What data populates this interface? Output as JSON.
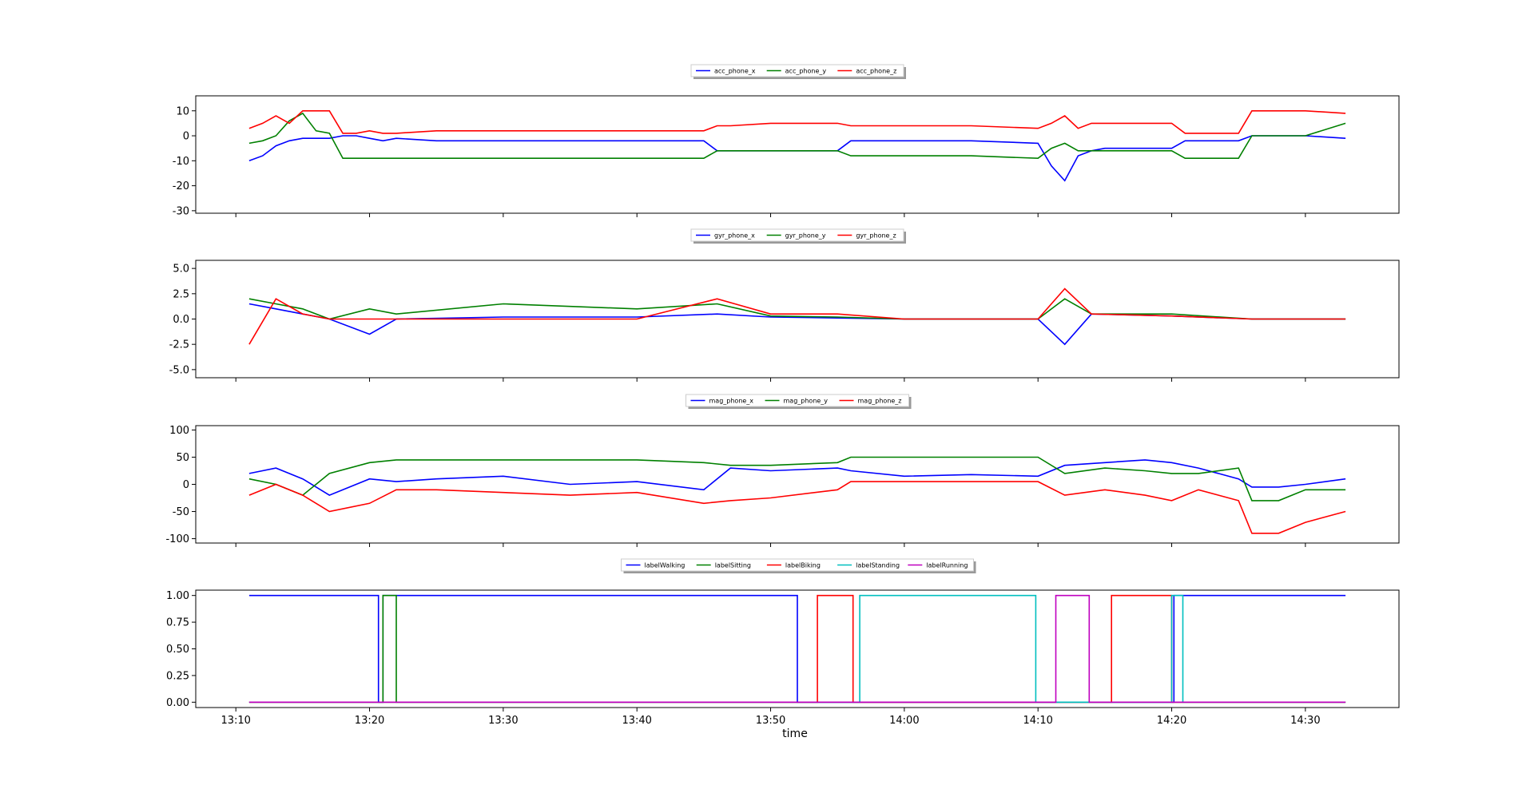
{
  "figure": {
    "xlabel": "time"
  },
  "chart_data": [
    {
      "type": "line",
      "title": "",
      "xlabel": "",
      "ylabel": "",
      "xlim": [
        "13:07",
        "14:37"
      ],
      "ylim": [
        -31,
        16
      ],
      "yticks": [
        -30,
        -20,
        -10,
        0,
        10
      ],
      "grid": false,
      "legend": "top-center",
      "series": [
        {
          "name": "acc_phone_x",
          "color": "#0000ff",
          "x": [
            "13:11",
            "13:12",
            "13:13",
            "13:14",
            "13:15",
            "13:16",
            "13:17",
            "13:18",
            "13:19",
            "13:20",
            "13:21",
            "13:22",
            "13:25",
            "13:30",
            "13:35",
            "13:40",
            "13:45",
            "13:46",
            "13:47",
            "13:50",
            "13:55",
            "13:56",
            "14:00",
            "14:05",
            "14:10",
            "14:11",
            "14:12",
            "14:13",
            "14:14",
            "14:15",
            "14:20",
            "14:21",
            "14:25",
            "14:26",
            "14:30",
            "14:33"
          ],
          "y": [
            -10,
            -8,
            -4,
            -2,
            -1,
            -1,
            -1,
            0,
            0,
            -1,
            -2,
            -1,
            -2,
            -2,
            -2,
            -2,
            -2,
            -6,
            -6,
            -6,
            -6,
            -2,
            -2,
            -2,
            -3,
            -12,
            -18,
            -8,
            -6,
            -5,
            -5,
            -2,
            -2,
            0,
            0,
            -1
          ]
        },
        {
          "name": "acc_phone_y",
          "color": "#008000",
          "x": [
            "13:11",
            "13:12",
            "13:13",
            "13:14",
            "13:15",
            "13:16",
            "13:17",
            "13:18",
            "13:19",
            "13:20",
            "13:21",
            "13:22",
            "13:25",
            "13:30",
            "13:35",
            "13:40",
            "13:45",
            "13:46",
            "13:47",
            "13:50",
            "13:55",
            "13:56",
            "14:00",
            "14:05",
            "14:10",
            "14:11",
            "14:12",
            "14:13",
            "14:14",
            "14:15",
            "14:20",
            "14:21",
            "14:25",
            "14:26",
            "14:30",
            "14:33"
          ],
          "y": [
            -3,
            -2,
            0,
            6,
            9,
            2,
            1,
            -9,
            -9,
            -9,
            -9,
            -9,
            -9,
            -9,
            -9,
            -9,
            -9,
            -6,
            -6,
            -6,
            -6,
            -8,
            -8,
            -8,
            -9,
            -5,
            -3,
            -6,
            -6,
            -6,
            -6,
            -9,
            -9,
            0,
            0,
            5
          ]
        },
        {
          "name": "acc_phone_z",
          "color": "#ff0000",
          "x": [
            "13:11",
            "13:12",
            "13:13",
            "13:14",
            "13:15",
            "13:16",
            "13:17",
            "13:18",
            "13:19",
            "13:20",
            "13:21",
            "13:22",
            "13:25",
            "13:30",
            "13:35",
            "13:40",
            "13:45",
            "13:46",
            "13:47",
            "13:50",
            "13:55",
            "13:56",
            "14:00",
            "14:05",
            "14:10",
            "14:11",
            "14:12",
            "14:13",
            "14:14",
            "14:15",
            "14:20",
            "14:21",
            "14:25",
            "14:26",
            "14:30",
            "14:33"
          ],
          "y": [
            3,
            5,
            8,
            5,
            10,
            10,
            10,
            1,
            1,
            2,
            1,
            1,
            2,
            2,
            2,
            2,
            2,
            4,
            4,
            5,
            5,
            4,
            4,
            4,
            3,
            5,
            8,
            3,
            5,
            5,
            5,
            1,
            1,
            10,
            10,
            9
          ]
        }
      ]
    },
    {
      "type": "line",
      "title": "",
      "xlabel": "",
      "ylabel": "",
      "xlim": [
        "13:07",
        "14:37"
      ],
      "ylim": [
        -5.8,
        5.8
      ],
      "yticks": [
        -5.0,
        -2.5,
        0.0,
        2.5,
        5.0
      ],
      "grid": false,
      "legend": "top-center",
      "series": [
        {
          "name": "gyr_phone_x",
          "color": "#0000ff",
          "x": [
            "13:11",
            "13:13",
            "13:15",
            "13:17",
            "13:20",
            "13:22",
            "13:30",
            "13:40",
            "13:46",
            "13:50",
            "13:55",
            "14:00",
            "14:10",
            "14:12",
            "14:14",
            "14:20",
            "14:26",
            "14:33"
          ],
          "y": [
            1.5,
            1.0,
            0.5,
            0.0,
            -1.5,
            0.0,
            0.2,
            0.2,
            0.5,
            0.2,
            0.1,
            0.0,
            0.0,
            -2.5,
            0.5,
            0.3,
            0.0,
            0.0
          ]
        },
        {
          "name": "gyr_phone_y",
          "color": "#008000",
          "x": [
            "13:11",
            "13:13",
            "13:15",
            "13:17",
            "13:20",
            "13:22",
            "13:30",
            "13:40",
            "13:46",
            "13:50",
            "13:55",
            "14:00",
            "14:10",
            "14:12",
            "14:14",
            "14:20",
            "14:26",
            "14:33"
          ],
          "y": [
            2.0,
            1.5,
            1.0,
            0.0,
            1.0,
            0.5,
            1.5,
            1.0,
            1.5,
            0.3,
            0.2,
            0.0,
            0.0,
            2.0,
            0.5,
            0.5,
            0.0,
            0.0
          ]
        },
        {
          "name": "gyr_phone_z",
          "color": "#ff0000",
          "x": [
            "13:11",
            "13:13",
            "13:15",
            "13:17",
            "13:20",
            "13:22",
            "13:30",
            "13:40",
            "13:46",
            "13:50",
            "13:55",
            "14:00",
            "14:10",
            "14:12",
            "14:14",
            "14:20",
            "14:26",
            "14:33"
          ],
          "y": [
            -2.5,
            2.0,
            0.5,
            0.0,
            0.0,
            0.0,
            0.0,
            0.0,
            2.0,
            0.5,
            0.5,
            0.0,
            0.0,
            3.0,
            0.5,
            0.3,
            0.0,
            0.0
          ]
        }
      ]
    },
    {
      "type": "line",
      "title": "",
      "xlabel": "",
      "ylabel": "",
      "xlim": [
        "13:07",
        "14:37"
      ],
      "ylim": [
        -108,
        108
      ],
      "yticks": [
        -100,
        -50,
        0,
        50,
        100
      ],
      "grid": false,
      "legend": "top-center",
      "series": [
        {
          "name": "mag_phone_x",
          "color": "#0000ff",
          "x": [
            "13:11",
            "13:13",
            "13:15",
            "13:17",
            "13:20",
            "13:22",
            "13:25",
            "13:30",
            "13:35",
            "13:40",
            "13:45",
            "13:47",
            "13:50",
            "13:55",
            "13:56",
            "14:00",
            "14:05",
            "14:10",
            "14:12",
            "14:15",
            "14:18",
            "14:20",
            "14:22",
            "14:25",
            "14:26",
            "14:28",
            "14:30",
            "14:33"
          ],
          "y": [
            20,
            30,
            10,
            -20,
            10,
            5,
            10,
            15,
            0,
            5,
            -10,
            30,
            25,
            30,
            25,
            15,
            18,
            15,
            35,
            40,
            45,
            40,
            30,
            10,
            -5,
            -5,
            0,
            10
          ]
        },
        {
          "name": "mag_phone_y",
          "color": "#008000",
          "x": [
            "13:11",
            "13:13",
            "13:15",
            "13:17",
            "13:20",
            "13:22",
            "13:25",
            "13:30",
            "13:35",
            "13:40",
            "13:45",
            "13:47",
            "13:50",
            "13:55",
            "13:56",
            "14:00",
            "14:05",
            "14:10",
            "14:12",
            "14:15",
            "14:18",
            "14:20",
            "14:22",
            "14:25",
            "14:26",
            "14:28",
            "14:30",
            "14:33"
          ],
          "y": [
            10,
            0,
            -20,
            20,
            40,
            45,
            45,
            45,
            45,
            45,
            40,
            35,
            35,
            40,
            50,
            50,
            50,
            50,
            20,
            30,
            25,
            20,
            20,
            30,
            -30,
            -30,
            -10,
            -10
          ]
        },
        {
          "name": "mag_phone_z",
          "color": "#ff0000",
          "x": [
            "13:11",
            "13:13",
            "13:15",
            "13:17",
            "13:20",
            "13:22",
            "13:25",
            "13:30",
            "13:35",
            "13:40",
            "13:45",
            "13:47",
            "13:50",
            "13:55",
            "13:56",
            "14:00",
            "14:05",
            "14:10",
            "14:12",
            "14:15",
            "14:18",
            "14:20",
            "14:22",
            "14:25",
            "14:26",
            "14:28",
            "14:30",
            "14:33"
          ],
          "y": [
            -20,
            0,
            -20,
            -50,
            -35,
            -10,
            -10,
            -15,
            -20,
            -15,
            -35,
            -30,
            -25,
            -10,
            5,
            5,
            5,
            5,
            -20,
            -10,
            -20,
            -30,
            -10,
            -30,
            -90,
            -90,
            -70,
            -50
          ]
        }
      ]
    },
    {
      "type": "line",
      "title": "",
      "xlabel": "time",
      "ylabel": "",
      "xlim": [
        "13:07",
        "14:37"
      ],
      "ylim": [
        -0.05,
        1.05
      ],
      "yticks": [
        0.0,
        0.25,
        0.5,
        0.75,
        1.0
      ],
      "xticks": [
        "13:10",
        "13:20",
        "13:30",
        "13:40",
        "13:50",
        "14:00",
        "14:10",
        "14:20",
        "14:30"
      ],
      "grid": false,
      "legend": "top-center",
      "series": [
        {
          "name": "labelWalking",
          "color": "#0000ff",
          "step": true,
          "x": [
            "13:11",
            "13:20:40",
            "13:20:40",
            "13:21:00",
            "13:21:00",
            "13:52:00",
            "13:52:00",
            "14:20:10",
            "14:20:10",
            "14:33"
          ],
          "y": [
            1,
            1,
            0,
            0,
            1,
            1,
            0,
            0,
            1,
            1
          ]
        },
        {
          "name": "labelSitting",
          "color": "#008000",
          "step": true,
          "x": [
            "13:11",
            "13:21:00",
            "13:21:00",
            "13:22:00",
            "13:22:00",
            "14:33"
          ],
          "y": [
            0,
            0,
            1,
            1,
            0,
            0
          ]
        },
        {
          "name": "labelBiking",
          "color": "#ff0000",
          "step": true,
          "x": [
            "13:11",
            "13:53:30",
            "13:53:30",
            "13:56:10",
            "13:56:10",
            "14:15:30",
            "14:15:30",
            "14:20:00",
            "14:20:00",
            "14:33"
          ],
          "y": [
            0,
            0,
            1,
            1,
            0,
            0,
            1,
            1,
            0,
            0
          ]
        },
        {
          "name": "labelStanding",
          "color": "#00bfbf",
          "step": true,
          "x": [
            "13:11",
            "13:56:40",
            "13:56:40",
            "14:09:50",
            "14:09:50",
            "14:20:00",
            "14:20:00",
            "14:20:50",
            "14:20:50",
            "14:33"
          ],
          "y": [
            0,
            0,
            1,
            1,
            0,
            0,
            1,
            1,
            0,
            0
          ]
        },
        {
          "name": "labelRunning",
          "color": "#bf00bf",
          "step": true,
          "x": [
            "13:11",
            "14:11:20",
            "14:11:20",
            "14:13:50",
            "14:13:50",
            "14:33"
          ],
          "y": [
            0,
            0,
            1,
            1,
            0,
            0
          ]
        }
      ]
    }
  ]
}
